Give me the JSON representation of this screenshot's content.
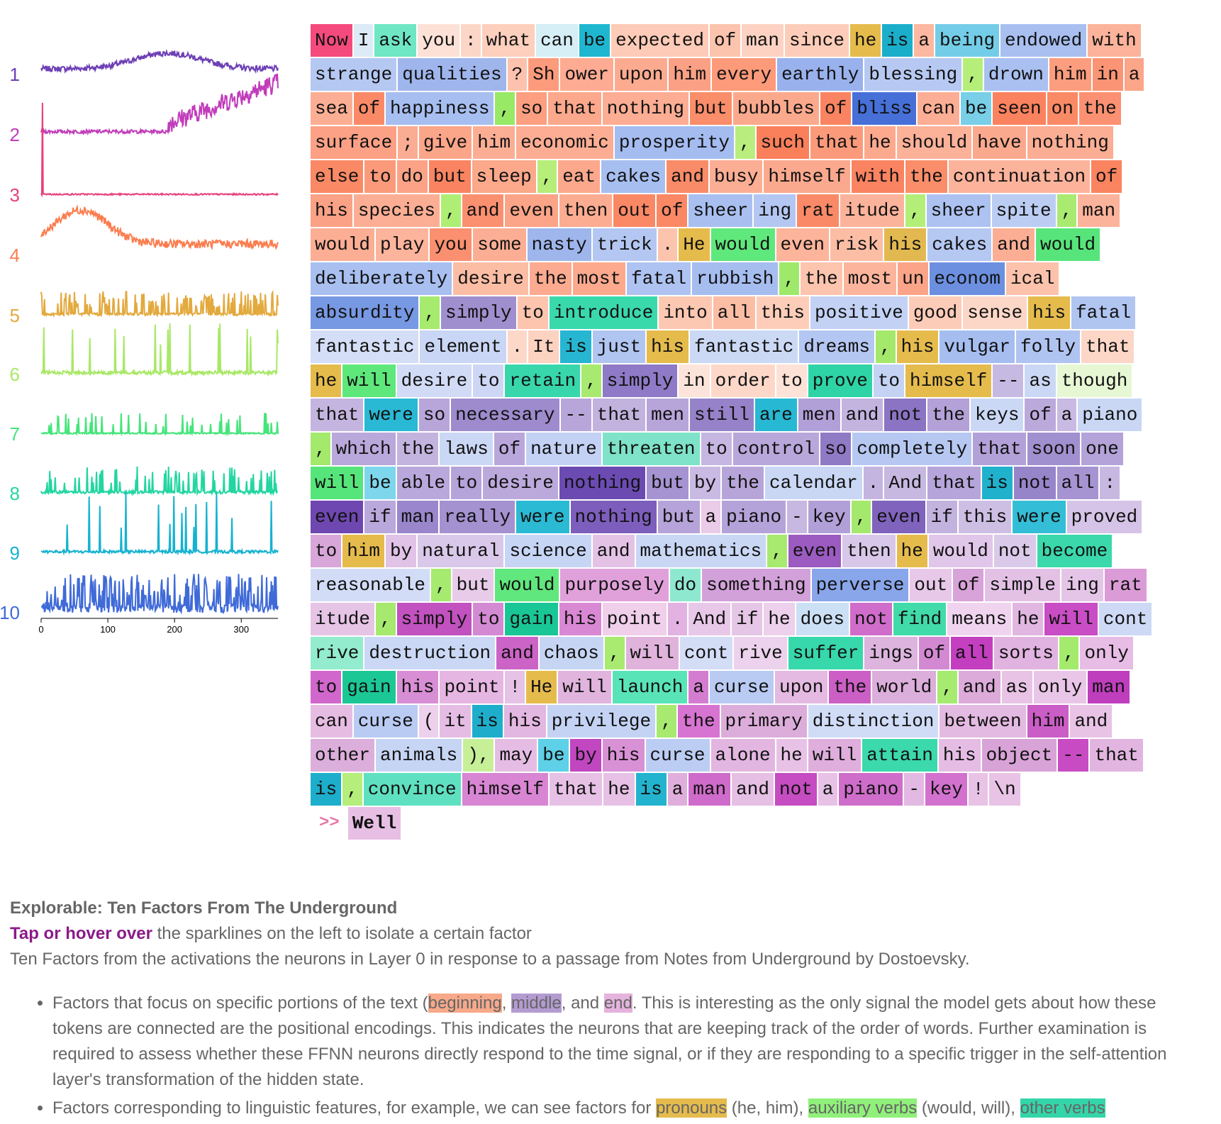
{
  "colors": {
    "factors": [
      "#6d3fb5",
      "#c13cba",
      "#e8407d",
      "#fb7d4f",
      "#e3a93d",
      "#a8e866",
      "#44e57a",
      "#23d6a1",
      "#16b2d0",
      "#3f6ad8"
    ]
  },
  "sparklines": {
    "labels": [
      "1",
      "2",
      "3",
      "4",
      "5",
      "6",
      "7",
      "8",
      "9",
      "10"
    ],
    "x_ticks": [
      "0",
      "100",
      "200",
      "300"
    ],
    "x_range": [
      0,
      355
    ]
  },
  "passage": {
    "tokens": [
      [
        "Now",
        "#f54a7c"
      ],
      [
        "I",
        "#dcebf5"
      ],
      [
        "ask",
        "#6fe6c4"
      ],
      [
        "you",
        "#fde1d6"
      ],
      [
        ":",
        "#fcd7c7"
      ],
      [
        "what",
        "#fdcfbd"
      ],
      [
        "can",
        "#d6eef5"
      ],
      [
        "be",
        "#1fb7d0"
      ],
      [
        "expected",
        "#fdcbb7"
      ],
      [
        "of",
        "#fcc4ad"
      ],
      [
        "man",
        "#fdd2c2"
      ],
      [
        "since",
        "#fdcdb9"
      ],
      [
        "he",
        "#e5bb4c"
      ],
      [
        "is",
        "#1aaecb"
      ],
      [
        "a",
        "#fcb8a0"
      ],
      [
        "being",
        "#74cde8"
      ],
      [
        "endowed",
        "#a8bff0"
      ],
      [
        "with",
        "#fcb39b"
      ],
      [
        "strange",
        "#b5c8f2"
      ],
      [
        "qualities",
        "#9fb6ec"
      ],
      [
        "?",
        "#fdc2ad"
      ],
      [
        "Sh",
        "#fc9b7c"
      ],
      [
        "ower",
        "#fdab92"
      ],
      [
        "upon",
        "#fcab90"
      ],
      [
        "him",
        "#fba084"
      ],
      [
        "every",
        "#fc9a7a"
      ],
      [
        "earthly",
        "#99b1ec"
      ],
      [
        "blessing",
        "#b7c9f2"
      ],
      [
        ",",
        "#b5ef7a"
      ],
      [
        "drown",
        "#a9c0f1"
      ],
      [
        "him",
        "#fb9d7e"
      ],
      [
        "in",
        "#fa9474"
      ],
      [
        "a",
        "#fba589"
      ],
      [
        "sea",
        "#fcae94"
      ],
      [
        "of",
        "#fa8a67"
      ],
      [
        "happiness",
        "#a7bef0"
      ],
      [
        ",",
        "#98e965"
      ],
      [
        "so",
        "#fb9f80"
      ],
      [
        "that",
        "#fba88c"
      ],
      [
        "nothing",
        "#fcad93"
      ],
      [
        "but",
        "#fa8d6a"
      ],
      [
        "bubbles",
        "#fba98d"
      ],
      [
        "of",
        "#fa8461"
      ],
      [
        "bliss",
        "#4670d8"
      ],
      [
        "can",
        "#fcae94"
      ],
      [
        "be",
        "#78cfe7"
      ],
      [
        "seen",
        "#fa825e"
      ],
      [
        "on",
        "#fa8a66"
      ],
      [
        "the",
        "#fb9172"
      ],
      [
        "surface",
        "#fca185"
      ],
      [
        ";",
        "#fbad94"
      ],
      [
        "give",
        "#fba589"
      ],
      [
        "him",
        "#fbae94"
      ],
      [
        "economic",
        "#fcad93"
      ],
      [
        "prosperity",
        "#a4bcf0"
      ],
      [
        ",",
        "#b9ee7e"
      ],
      [
        "such",
        "#fa7f5b"
      ],
      [
        "that",
        "#fb9a7b"
      ],
      [
        "he",
        "#fca98e"
      ],
      [
        "should",
        "#fcb199"
      ],
      [
        "have",
        "#fba98e"
      ],
      [
        "nothing",
        "#fcae94"
      ],
      [
        "else",
        "#fa8965"
      ],
      [
        "to",
        "#fb9a7b"
      ],
      [
        "do",
        "#fca387"
      ],
      [
        "but",
        "#fa8461"
      ],
      [
        "sleep",
        "#fba88b"
      ],
      [
        ",",
        "#b6ee79"
      ],
      [
        "eat",
        "#fca88c"
      ],
      [
        "cakes",
        "#a7bef0"
      ],
      [
        "and",
        "#fa8b68"
      ],
      [
        "busy",
        "#fcae94"
      ],
      [
        "himself",
        "#fba98e"
      ],
      [
        "with",
        "#fa8361"
      ],
      [
        "the",
        "#fa8e6a"
      ],
      [
        "continuation",
        "#fcb39b"
      ],
      [
        "of",
        "#fa8360"
      ],
      [
        "his",
        "#fba185"
      ],
      [
        "species",
        "#fcae94"
      ],
      [
        ",",
        "#aeee74"
      ],
      [
        "and",
        "#fa9070"
      ],
      [
        "even",
        "#fba488"
      ],
      [
        "then",
        "#fcac91"
      ],
      [
        "out",
        "#fa8865"
      ],
      [
        "of",
        "#fa8865"
      ],
      [
        "sheer",
        "#a8bff0"
      ],
      [
        "ing",
        "#b4c7f2"
      ],
      [
        "rat",
        "#fa8a67"
      ],
      [
        "itude",
        "#fcb39b"
      ],
      [
        ",",
        "#b3ef78"
      ],
      [
        "sheer",
        "#adc2f1"
      ],
      [
        "spite",
        "#bccdf3"
      ],
      [
        ",",
        "#a9ea70"
      ],
      [
        "man",
        "#fcb39b"
      ],
      [
        "would",
        "#fcae94"
      ],
      [
        "play",
        "#fcb49c"
      ],
      [
        "you",
        "#fa9070"
      ],
      [
        "some",
        "#fcae94"
      ],
      [
        "nasty",
        "#9fb6ec"
      ],
      [
        "trick",
        "#b4c7f2"
      ],
      [
        ".",
        "#fcc4ad"
      ],
      [
        "He",
        "#e5bb4c"
      ],
      [
        "would",
        "#5fe87c"
      ],
      [
        "even",
        "#fcb49b"
      ],
      [
        "risk",
        "#fcbda5"
      ],
      [
        "his",
        "#e2b850"
      ],
      [
        "cakes",
        "#b5c8f2"
      ],
      [
        "and",
        "#fcae94"
      ],
      [
        "would",
        "#57e57b"
      ],
      [
        "deliberately",
        "#a8bff0"
      ],
      [
        "desire",
        "#fcbda5"
      ],
      [
        "the",
        "#fcab90"
      ],
      [
        "most",
        "#fca98e"
      ],
      [
        "fatal",
        "#aec3f1"
      ],
      [
        "rubbish",
        "#a6bdf0"
      ],
      [
        ",",
        "#9ee96a"
      ],
      [
        "the",
        "#fdc4ae"
      ],
      [
        "most",
        "#fcb59c"
      ],
      [
        "un",
        "#fba487"
      ],
      [
        "econom",
        "#6c8fe0"
      ],
      [
        "ical",
        "#fcc2ac"
      ],
      [
        "absurdity",
        "#7798e2"
      ],
      [
        ",",
        "#a6ea6e"
      ],
      [
        "simply",
        "#a08fce"
      ],
      [
        "to",
        "#fdc4ae"
      ],
      [
        "introduce",
        "#3ad9ac"
      ],
      [
        "into",
        "#fdc8b2"
      ],
      [
        "all",
        "#fcbda5"
      ],
      [
        "this",
        "#fdcdb9"
      ],
      [
        "positive",
        "#c2d1f4"
      ],
      [
        "good",
        "#fdccb8"
      ],
      [
        "sense",
        "#fcd7c7"
      ],
      [
        "his",
        "#e5bb4c"
      ],
      [
        "fatal",
        "#b1c5f1"
      ],
      [
        "fantastic",
        "#d4def6"
      ],
      [
        "element",
        "#c9d6f5"
      ],
      [
        ".",
        "#fdd8c9"
      ],
      [
        "It",
        "#fcd2c0"
      ],
      [
        "is",
        "#26b6d2"
      ],
      [
        "just",
        "#b1c5f1"
      ],
      [
        "his",
        "#e5bb4c"
      ],
      [
        "fantastic",
        "#ccd9f5"
      ],
      [
        "dreams",
        "#b4c7f2"
      ],
      [
        ",",
        "#a4e86c"
      ],
      [
        "his",
        "#e5bb4c"
      ],
      [
        "vulgar",
        "#a6bdf0"
      ],
      [
        "folly",
        "#b0c4f1"
      ],
      [
        "that",
        "#fcd7c7"
      ],
      [
        "he",
        "#e5bb4c"
      ],
      [
        "will",
        "#5ee87b"
      ],
      [
        "desire",
        "#d1dbf6"
      ],
      [
        "to",
        "#cdd7f5"
      ],
      [
        "retain",
        "#38d7ab"
      ],
      [
        ",",
        "#a7ea6f"
      ],
      [
        "simply",
        "#8e7ac6"
      ],
      [
        "in",
        "#fde4da"
      ],
      [
        "order",
        "#fdd8c9"
      ],
      [
        "to",
        "#fde2d7"
      ],
      [
        "prove",
        "#2ed4a5"
      ],
      [
        "to",
        "#c4d3f4"
      ],
      [
        "himself",
        "#e5bb4c"
      ],
      [
        "--",
        "#c6b9e2"
      ],
      [
        "as",
        "#cbd8f5"
      ],
      [
        "though",
        "#e6f7d4"
      ],
      [
        "that",
        "#c4b5e0"
      ],
      [
        "were",
        "#29b9d4"
      ],
      [
        "so",
        "#b8a6da"
      ],
      [
        "necessary",
        "#9d8bcd"
      ],
      [
        "--",
        "#b8a6da"
      ],
      [
        "that",
        "#c1b2de"
      ],
      [
        "men",
        "#b7a5da"
      ],
      [
        "still",
        "#9582c9"
      ],
      [
        "are",
        "#27b8d3"
      ],
      [
        "men",
        "#b1a0d8"
      ],
      [
        "and",
        "#c2b3df"
      ],
      [
        "not",
        "#8a74c3"
      ],
      [
        "the",
        "#b3a1d8"
      ],
      [
        "keys",
        "#cbd8f5"
      ],
      [
        "of",
        "#bca9dc"
      ],
      [
        "a",
        "#c8bae2"
      ],
      [
        "piano",
        "#c9d7f5"
      ],
      [
        ",",
        "#a2e96c"
      ],
      [
        "which",
        "#b9a8db"
      ],
      [
        "the",
        "#c3b4df"
      ],
      [
        "laws",
        "#cbd8f5"
      ],
      [
        "of",
        "#b9a7db"
      ],
      [
        "nature",
        "#c2d1f4"
      ],
      [
        "threaten",
        "#7ee3c8"
      ],
      [
        "to",
        "#c5b7e1"
      ],
      [
        "control",
        "#b8a7db"
      ],
      [
        "so",
        "#8f7ac6"
      ],
      [
        "completely",
        "#b6c8f2"
      ],
      [
        "that",
        "#b2a1d8"
      ],
      [
        "soon",
        "#a190cf"
      ],
      [
        "one",
        "#b4a3d9"
      ],
      [
        "will",
        "#56e57a"
      ],
      [
        "be",
        "#7ed6ec"
      ],
      [
        "able",
        "#b9a8db"
      ],
      [
        "to",
        "#b5a4d9"
      ],
      [
        "desire",
        "#bca9dc"
      ],
      [
        "nothing",
        "#6b4bb2"
      ],
      [
        "but",
        "#a594d1"
      ],
      [
        "by",
        "#c8bae2"
      ],
      [
        "the",
        "#b7a5da"
      ],
      [
        "calendar",
        "#c9d7f5"
      ],
      [
        ".",
        "#c4b5e0"
      ],
      [
        "And",
        "#c6b8e1"
      ],
      [
        "that",
        "#b6a5da"
      ],
      [
        "is",
        "#20b1cd"
      ],
      [
        "not",
        "#9785ca"
      ],
      [
        "all",
        "#a594d1"
      ],
      [
        ":",
        "#c6b8e1"
      ],
      [
        "even",
        "#6e47b0"
      ],
      [
        "if",
        "#b9a8db"
      ],
      [
        "man",
        "#9986cb"
      ],
      [
        "really",
        "#a391d0"
      ],
      [
        "were",
        "#2bbad4"
      ],
      [
        "nothing",
        "#7d5ebd"
      ],
      [
        "but",
        "#b5a3d9"
      ],
      [
        "a",
        "#eacbe8"
      ],
      [
        "piano",
        "#b4a3d9"
      ],
      [
        "-",
        "#c6b8e1"
      ],
      [
        "key",
        "#b1a0d8"
      ],
      [
        ",",
        "#a4e96d"
      ],
      [
        "even",
        "#8063bd"
      ],
      [
        "if",
        "#c1b2de"
      ],
      [
        "this",
        "#cdbfe4"
      ],
      [
        "were",
        "#34bdd6"
      ],
      [
        "proved",
        "#d5c4e7"
      ],
      [
        "to",
        "#d8a6d8"
      ],
      [
        "him",
        "#e5bb4c"
      ],
      [
        "by",
        "#e0c3e6"
      ],
      [
        "natural",
        "#d9c8e9"
      ],
      [
        "science",
        "#c7d5f5"
      ],
      [
        "and",
        "#e4c2e6"
      ],
      [
        "mathematics",
        "#c9d7f5"
      ],
      [
        ",",
        "#a7ea6f"
      ],
      [
        "even",
        "#9b5bc0"
      ],
      [
        "then",
        "#d8c7e8"
      ],
      [
        "he",
        "#e5bb4c"
      ],
      [
        "would",
        "#e0c6e8"
      ],
      [
        "not",
        "#dbc9e9"
      ],
      [
        "become",
        "#3ad8ab"
      ],
      [
        "reasonable",
        "#d2dcf6"
      ],
      [
        ",",
        "#a6ea6f"
      ],
      [
        "but",
        "#e8cbe9"
      ],
      [
        "would",
        "#60e77d"
      ],
      [
        "purposely",
        "#e0a1db"
      ],
      [
        "do",
        "#8ee8cf"
      ],
      [
        "something",
        "#d2a1d9"
      ],
      [
        "perverse",
        "#8aa6ea"
      ],
      [
        "out",
        "#e8c8e8"
      ],
      [
        "of",
        "#d7a3d8"
      ],
      [
        "simple",
        "#e3c1e5"
      ],
      [
        "ing",
        "#e5c5e7"
      ],
      [
        "rat",
        "#da9bd6"
      ],
      [
        "itude",
        "#e6c4e6"
      ],
      [
        ",",
        "#a5ea6e"
      ],
      [
        "simply",
        "#c152bf"
      ],
      [
        "to",
        "#d38ad3"
      ],
      [
        "gain",
        "#19c796"
      ],
      [
        "his",
        "#d988d4"
      ],
      [
        "point",
        "#f0cfeb"
      ],
      [
        ".",
        "#e2b2e2"
      ],
      [
        "And",
        "#e8c8e8"
      ],
      [
        "if",
        "#e6c6e7"
      ],
      [
        "he",
        "#edd0ec"
      ],
      [
        "does",
        "#cbe0f4"
      ],
      [
        "not",
        "#d06dcb"
      ],
      [
        "find",
        "#41dba9"
      ],
      [
        "means",
        "#f0d4ef"
      ],
      [
        "he",
        "#e1b7e1"
      ],
      [
        "will",
        "#c94dc4"
      ],
      [
        "cont",
        "#cdd9f5"
      ],
      [
        "rive",
        "#92eccd"
      ],
      [
        "destruction",
        "#cbd8f5"
      ],
      [
        "and",
        "#cc63c7"
      ],
      [
        "chaos",
        "#c7d5f4"
      ],
      [
        ",",
        "#a9eb70"
      ],
      [
        "will",
        "#dfb3dc"
      ],
      [
        "cont",
        "#d3ddf6"
      ],
      [
        "rive",
        "#ecd2ec"
      ],
      [
        "suffer",
        "#37d8ab"
      ],
      [
        "ings",
        "#dcb4dd"
      ],
      [
        "of",
        "#d289d2"
      ],
      [
        "all",
        "#c43fc0"
      ],
      [
        "sorts",
        "#e1b3e0"
      ],
      [
        ",",
        "#a4ea6d"
      ],
      [
        "only",
        "#e7bde5"
      ],
      [
        "to",
        "#d167cc"
      ],
      [
        "gain",
        "#1bc895"
      ],
      [
        "his",
        "#d88ed5"
      ],
      [
        "point",
        "#e6b6e2"
      ],
      [
        "!",
        "#e6c2e6"
      ],
      [
        "He",
        "#e5bb4c"
      ],
      [
        "will",
        "#e1b4de"
      ],
      [
        "launch",
        "#58e4b7"
      ],
      [
        "a",
        "#d47dd0"
      ],
      [
        "curse",
        "#b9cbf3"
      ],
      [
        "upon",
        "#e4bae2"
      ],
      [
        "the",
        "#cc5fc6"
      ],
      [
        "world",
        "#dcaedb"
      ],
      [
        ",",
        "#a6ea6f"
      ],
      [
        "and",
        "#dcabd9"
      ],
      [
        "as",
        "#e8c3e6"
      ],
      [
        "only",
        "#e9c6e7"
      ],
      [
        "man",
        "#bf3ebe"
      ],
      [
        "can",
        "#e6bce3"
      ],
      [
        "curse",
        "#b9cbf3"
      ],
      [
        "(",
        "#edd0ec"
      ],
      [
        "it",
        "#e5bde4"
      ],
      [
        "is",
        "#1eaecb"
      ],
      [
        "his",
        "#e2b7e1"
      ],
      [
        "privilege",
        "#c4d3f4"
      ],
      [
        ",",
        "#a7ea6f"
      ],
      [
        "the",
        "#d774d1"
      ],
      [
        "primary",
        "#dcaddb"
      ],
      [
        "distinction",
        "#d0dbf6"
      ],
      [
        "between",
        "#e3bae2"
      ],
      [
        "him",
        "#cb5dc6"
      ],
      [
        "and",
        "#e8c3e6"
      ],
      [
        "other",
        "#dcaedb"
      ],
      [
        "animals",
        "#c7d5f4"
      ],
      [
        "),",
        "#c6ef98"
      ],
      [
        "may",
        "#e5bde4"
      ],
      [
        "be",
        "#5ed0e8"
      ],
      [
        "by",
        "#c047c0"
      ],
      [
        "his",
        "#d991d6"
      ],
      [
        "curse",
        "#bccdf3"
      ],
      [
        "alone",
        "#e2b6e1"
      ],
      [
        "he",
        "#e8c2e6"
      ],
      [
        "will",
        "#dfaedd"
      ],
      [
        "attain",
        "#3bd9ac"
      ],
      [
        "his",
        "#e5bde4"
      ],
      [
        "object",
        "#d8a3d7"
      ],
      [
        "--",
        "#c84bc3"
      ],
      [
        "that",
        "#e2b5e1"
      ],
      [
        "is",
        "#1daecb"
      ],
      [
        ",",
        "#b5ee7b"
      ],
      [
        "convince",
        "#5fe0c1"
      ],
      [
        "himself",
        "#d885d3"
      ],
      [
        "that",
        "#e7c0e5"
      ],
      [
        "he",
        "#e6c0e5"
      ],
      [
        "is",
        "#23b3ce"
      ],
      [
        "a",
        "#e0aedd"
      ],
      [
        "man",
        "#cf6bca"
      ],
      [
        "and",
        "#e6bfe4"
      ],
      [
        "not",
        "#c64cc2"
      ],
      [
        "a",
        "#e7c2e6"
      ],
      [
        "piano",
        "#cf6dcb"
      ],
      [
        "-",
        "#e3b8e2"
      ],
      [
        "key",
        "#d371ce"
      ],
      [
        "!",
        "#e8c3e6"
      ],
      [
        "\\n",
        "#e8c3e6"
      ]
    ],
    "prompt_marker": ">>",
    "next_token": "Well",
    "next_token_color": "#e8bfe4"
  },
  "caption": {
    "title": "Explorable: Ten Factors From The Underground",
    "tap_strong": "Tap or hover over",
    "tap_rest": " the sparklines on the left to isolate a certain factor",
    "description": "Ten Factors from the activations the neurons in Layer 0 in response to a passage from Notes from Underground by Dostoevsky.",
    "bullet1": {
      "pre": "Factors that focus on specific portions of the text (",
      "beginning": "beginning",
      "sep1": ", ",
      "middle": "middle",
      "sep2": ", and ",
      "end": "end",
      "post": ". This is interesting as the only signal the model gets about how these tokens are connected are the positional encodings. This indicates the neurons that are keeping track of the order of words. Further examination is required to assess whether these FFNN neurons directly respond to the time signal, or if they are responding to a specific trigger in the self-attention layer's transformation of the hidden state."
    },
    "bullet2": {
      "pre": "Factors corresponding to linguistic features, for example, we can see factors for ",
      "pronouns": "pronouns",
      "mid1": " (he, him), ",
      "aux": "auxiliary verbs",
      "mid2": " (would, will), ",
      "other": "other verbs"
    }
  }
}
